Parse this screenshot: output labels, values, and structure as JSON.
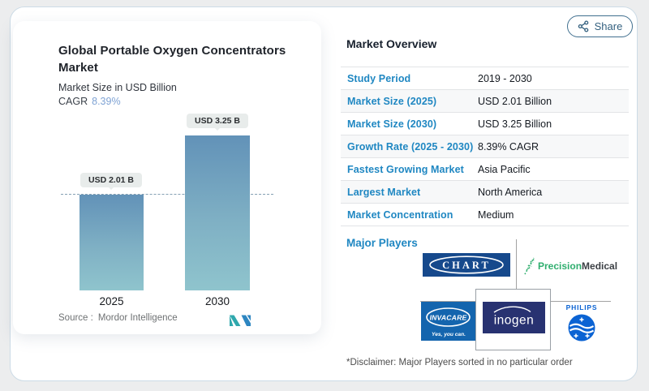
{
  "share": {
    "label": "Share"
  },
  "chart_card": {
    "title": "Global Portable Oxygen Concentrators Market",
    "subtitle": "Market Size in USD Billion",
    "cagr_label": "CAGR",
    "cagr_value": "8.39%",
    "source_label": "Source :",
    "source_value": "Mordor Intelligence"
  },
  "chart_data": {
    "type": "bar",
    "categories": [
      "2025",
      "2030"
    ],
    "values": [
      2.01,
      3.25
    ],
    "bar_labels": [
      "USD 2.01 B",
      "USD 3.25 B"
    ],
    "title": "Global Portable Oxygen Concentrators Market",
    "xlabel": "",
    "ylabel": "Market Size in USD Billion",
    "ylim": [
      0,
      3.25
    ],
    "grid": false,
    "legend": "none",
    "cagr": "8.39%",
    "reference_line": {
      "at": 2.01,
      "style": "dashed"
    },
    "bar_gradient_top": "#6292b8",
    "bar_gradient_bottom": "#8fc4cd"
  },
  "overview": {
    "heading": "Market Overview",
    "label_color": "#1f87c2",
    "rows": [
      {
        "label": "Study Period",
        "value": "2019 - 2030"
      },
      {
        "label": "Market Size (2025)",
        "value": "USD 2.01 Billion"
      },
      {
        "label": "Market Size (2030)",
        "value": "USD 3.25 Billion"
      },
      {
        "label": "Growth Rate (2025 - 2030)",
        "value": "8.39% CAGR"
      },
      {
        "label": "Fastest Growing Market",
        "value": "Asia Pacific"
      },
      {
        "label": "Largest Market",
        "value": "North America"
      },
      {
        "label": "Market Concentration",
        "value": "Medium"
      }
    ]
  },
  "players": {
    "heading": "Major Players",
    "chart_industries": {
      "label": "CHART"
    },
    "precision": {
      "part1": "Precision",
      "part2": "Medical"
    },
    "invacare": {
      "label": "INVACARE",
      "tagline": "Yes, you can."
    },
    "inogen": {
      "label": "inogen"
    },
    "philips": {
      "label": "PHILIPS"
    },
    "disclaimer": "*Disclaimer: Major Players sorted in no particular order"
  },
  "colors": {
    "accent_cagr": "#7fa3d4",
    "table_label_blue": "#1f87c2",
    "chart_navy": "#16498c",
    "invacare_blue": "#1465ae",
    "inogen_navy": "#283271",
    "philips_blue": "#0b63d3",
    "precision_green": "#2fae6e"
  }
}
